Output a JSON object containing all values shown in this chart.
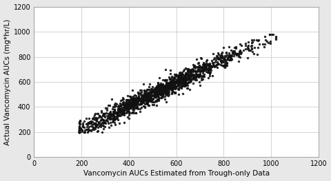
{
  "xlabel": "Vancomycin AUCs Estimated from Trough-only Data",
  "ylabel": "Actual Vancomycin AUCs (mg*hr/L)",
  "xlim": [
    0,
    1200
  ],
  "ylim": [
    0,
    1200
  ],
  "xticks": [
    0,
    200,
    400,
    600,
    800,
    1000,
    1200
  ],
  "yticks": [
    0,
    200,
    400,
    600,
    800,
    1000,
    1200
  ],
  "dot_color": "#111111",
  "dot_size": 6,
  "dot_alpha": 0.9,
  "background_color": "#e8e8e8",
  "plot_background": "#ffffff",
  "grid_color": "#cccccc",
  "xlabel_fontsize": 7.5,
  "ylabel_fontsize": 7.5,
  "tick_fontsize": 7,
  "seed": 42,
  "n_points": 1500,
  "x_mean": 520,
  "x_std": 185,
  "slope": 0.92,
  "intercept": 40,
  "noise_std": 38,
  "x_min_clip": 190,
  "x_max_clip": 1020,
  "y_min_clip": 200,
  "y_max_clip": 980
}
